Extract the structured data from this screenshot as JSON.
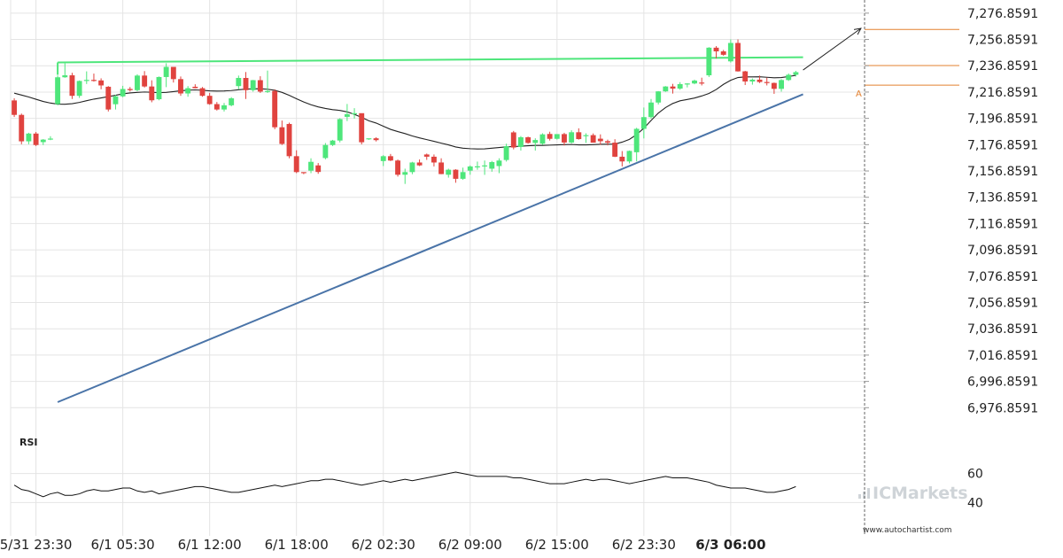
{
  "chart_data": [
    {
      "type": "candlestick",
      "ylim": [
        6956.8591,
        7286.8591
      ],
      "y_ticks": [
        "7,276.8591",
        "7,256.8591",
        "7,236.8591",
        "7,216.8591",
        "7,196.8591",
        "7,176.8591",
        "7,156.8591",
        "7,136.8591",
        "7,116.8591",
        "7,096.8591",
        "7,076.8591",
        "7,056.8591",
        "7,036.8591",
        "7,016.8591",
        "6,996.8591",
        "6,976.8591"
      ],
      "y_tick_values": [
        7276.8591,
        7256.8591,
        7236.8591,
        7216.8591,
        7196.8591,
        7176.8591,
        7156.8591,
        7136.8591,
        7116.8591,
        7096.8591,
        7076.8591,
        7056.8591,
        7036.8591,
        7016.8591,
        6996.8591,
        6976.8591
      ],
      "x_ticks": [
        "5/31 23:30",
        "6/1 05:30",
        "6/1 12:00",
        "6/1 18:00",
        "6/2 02:30",
        "6/2 09:00",
        "6/2 15:00",
        "6/2 23:30",
        "6/3 06:00"
      ],
      "x_tick_bar_index": [
        3,
        15,
        27,
        39,
        51,
        63,
        75,
        87,
        99
      ],
      "last_x_tick_bold": true,
      "candles_ohlc": [
        [
          7210.5,
          7212.1,
          7197.9,
          7199.5
        ],
        [
          7199.5,
          7200.5,
          7177.2,
          7179.4
        ],
        [
          7179.4,
          7185.9,
          7177.2,
          7185.3
        ],
        [
          7185.3,
          7186.5,
          7175.8,
          7176.6
        ],
        [
          7178.8,
          7181.1,
          7176.6,
          7180.7
        ],
        [
          7180.7,
          7183.3,
          7180.3,
          7181.5
        ],
        [
          7207.7,
          7229.4,
          7206.8,
          7228.1
        ],
        [
          7228.1,
          7238.8,
          7227.7,
          7229.6
        ],
        [
          7229.6,
          7231.5,
          7211.6,
          7214.0
        ],
        [
          7214.0,
          7225.7,
          7212.4,
          7225.3
        ],
        [
          7225.3,
          7232.6,
          7223.0,
          7226.1
        ],
        [
          7226.1,
          7230.9,
          7224.8,
          7225.7
        ],
        [
          7225.7,
          7227.3,
          7219.0,
          7221.9
        ],
        [
          7220.9,
          7221.4,
          7202.1,
          7203.6
        ],
        [
          7207.6,
          7214.7,
          7203.6,
          7213.6
        ],
        [
          7213.6,
          7221.6,
          7212.9,
          7219.2
        ],
        [
          7219.2,
          7220.7,
          7217.3,
          7218.3
        ],
        [
          7218.3,
          7230.4,
          7217.5,
          7229.4
        ],
        [
          7229.4,
          7232.8,
          7220.3,
          7221.1
        ],
        [
          7221.1,
          7225.8,
          7209.1,
          7210.6
        ],
        [
          7211.4,
          7228.7,
          7210.6,
          7228.3
        ],
        [
          7228.3,
          7238.8,
          7220.6,
          7236.0
        ],
        [
          7236.0,
          7235.5,
          7224.1,
          7226.7
        ],
        [
          7226.7,
          7228.7,
          7214.0,
          7215.8
        ],
        [
          7215.8,
          7221.4,
          7213.3,
          7219.8
        ],
        [
          7220.9,
          7222.8,
          7219.7,
          7219.8
        ],
        [
          7219.8,
          7220.7,
          7213.3,
          7214.0
        ],
        [
          7214.0,
          7216.2,
          7207.2,
          7207.7
        ],
        [
          7207.7,
          7209.3,
          7202.8,
          7203.6
        ],
        [
          7203.6,
          7208.6,
          7202.1,
          7206.8
        ],
        [
          7206.8,
          7213.0,
          7206.0,
          7212.1
        ],
        [
          7221.4,
          7229.4,
          7219.0,
          7227.6
        ],
        [
          7227.6,
          7232.1,
          7211.6,
          7218.3
        ],
        [
          7218.3,
          7226.1,
          7217.2,
          7225.9
        ],
        [
          7225.9,
          7228.9,
          7216.2,
          7217.2
        ],
        [
          7217.2,
          7233.2,
          7216.2,
          7217.7
        ],
        [
          7217.7,
          7218.9,
          7188.6,
          7190.1
        ],
        [
          7190.1,
          7195.2,
          7176.6,
          7177.4
        ],
        [
          7192.6,
          7193.6,
          7166.5,
          7168.1
        ],
        [
          7168.1,
          7172.6,
          7155.2,
          7156.0
        ],
        [
          7156.0,
          7155.5,
          7154.4,
          7155.2
        ],
        [
          7157.1,
          7166.5,
          7155.2,
          7163.8
        ],
        [
          7161.1,
          7162.9,
          7154.7,
          7156.1
        ],
        [
          7166.7,
          7178.1,
          7165.7,
          7176.6
        ],
        [
          7176.6,
          7180.5,
          7175.8,
          7180.0
        ],
        [
          7180.0,
          7197.0,
          7178.6,
          7196.3
        ],
        [
          7198.0,
          7207.8,
          7194.8,
          7200.0
        ],
        [
          7200.0,
          7204.6,
          7196.7,
          7200.8
        ],
        [
          7200.8,
          7199.2,
          7177.1,
          7178.7
        ],
        [
          7181.7,
          7181.5,
          7180.5,
          7181.7
        ],
        [
          7181.7,
          7182.5,
          7179.3,
          7180.3
        ],
        [
          7164.4,
          7168.9,
          7160.6,
          7168.1
        ],
        [
          7168.1,
          7169.8,
          7164.4,
          7164.8
        ],
        [
          7164.8,
          7165.6,
          7152.6,
          7154.0
        ],
        [
          7154.0,
          7158.6,
          7147.0,
          7156.0
        ],
        [
          7156.0,
          7163.8,
          7154.4,
          7163.3
        ],
        [
          7163.3,
          7165.6,
          7160.6,
          7161.1
        ],
        [
          7169.4,
          7170.1,
          7165.3,
          7167.7
        ],
        [
          7167.7,
          7169.4,
          7160.3,
          7163.3
        ],
        [
          7163.3,
          7166.5,
          7154.4,
          7154.5
        ],
        [
          7154.0,
          7158.6,
          7151.8,
          7157.8
        ],
        [
          7157.8,
          7158.2,
          7147.9,
          7150.9
        ],
        [
          7150.9,
          7159.4,
          7150.1,
          7156.0
        ],
        [
          7157.1,
          7161.1,
          7154.0,
          7160.3
        ],
        [
          7160.3,
          7164.0,
          7157.8,
          7160.4
        ],
        [
          7160.5,
          7164.8,
          7153.9,
          7161.1
        ],
        [
          7158.6,
          7164.5,
          7156.3,
          7163.6
        ],
        [
          7160.6,
          7166.5,
          7155.2,
          7164.8
        ],
        [
          7165.2,
          7177.6,
          7164.0,
          7175.7
        ],
        [
          7186.2,
          7187.3,
          7173.3,
          7174.7
        ],
        [
          7175.1,
          7183.4,
          7172.4,
          7182.5
        ],
        [
          7182.5,
          7183.0,
          7177.6,
          7178.2
        ],
        [
          7178.2,
          7181.7,
          7172.4,
          7180.4
        ],
        [
          7177.6,
          7185.5,
          7176.6,
          7184.7
        ],
        [
          7185.0,
          7186.7,
          7180.0,
          7181.3
        ],
        [
          7181.3,
          7184.7,
          7180.7,
          7184.9
        ],
        [
          7184.9,
          7185.9,
          7176.2,
          7178.5
        ],
        [
          7178.5,
          7187.8,
          7177.8,
          7186.3
        ],
        [
          7186.3,
          7189.3,
          7180.7,
          7181.1
        ],
        [
          7184.0,
          7185.5,
          7178.2,
          7184.1
        ],
        [
          7184.1,
          7185.4,
          7178.4,
          7178.4
        ],
        [
          7181.4,
          7184.7,
          7176.8,
          7179.5
        ],
        [
          7179.5,
          7180.7,
          7176.3,
          7178.4
        ],
        [
          7178.4,
          7181.0,
          7167.4,
          7167.7
        ],
        [
          7167.7,
          7172.0,
          7160.3,
          7164.1
        ],
        [
          7164.1,
          7172.4,
          7162.6,
          7172.1
        ],
        [
          7171.1,
          7189.7,
          7164.1,
          7188.9
        ],
        [
          7188.9,
          7205.1,
          7181.6,
          7197.8
        ],
        [
          7197.8,
          7211.6,
          7196.6,
          7208.9
        ],
        [
          7208.9,
          7217.6,
          7207.4,
          7217.4
        ],
        [
          7217.4,
          7221.4,
          7217.0,
          7221.1
        ],
        [
          7221.1,
          7223.1,
          7215.7,
          7219.5
        ],
        [
          7219.5,
          7224.4,
          7218.6,
          7222.9
        ],
        [
          7222.9,
          7223.6,
          7220.4,
          7223.4
        ],
        [
          7223.4,
          7226.3,
          7222.8,
          7225.6
        ],
        [
          7224.1,
          7227.8,
          7221.9,
          7223.8
        ],
        [
          7229.6,
          7251.0,
          7228.3,
          7250.6
        ],
        [
          7250.6,
          7251.8,
          7242.4,
          7247.8
        ],
        [
          7247.8,
          7248.9,
          7244.5,
          7245.2
        ],
        [
          7240.2,
          7256.9,
          7239.3,
          7254.2
        ],
        [
          7254.2,
          7256.9,
          7232.4,
          7232.6
        ],
        [
          7232.6,
          7233.0,
          7222.2,
          7224.9
        ],
        [
          7224.9,
          7227.2,
          7222.5,
          7226.3
        ],
        [
          7226.3,
          7229.4,
          7223.7,
          7224.5
        ],
        [
          7224.5,
          7227.8,
          7221.9,
          7223.8
        ],
        [
          7223.8,
          7224.1,
          7215.5,
          7219.3
        ],
        [
          7219.3,
          7226.7,
          7217.2,
          7226.0
        ],
        [
          7226.0,
          7231.0,
          7225.3,
          7230.0
        ],
        [
          7230.0,
          7233.0,
          7228.7,
          7232.0
        ]
      ],
      "moving_average": [
        7216.0,
        7214.6,
        7213.1,
        7211.4,
        7209.7,
        7208.5,
        7207.7,
        7207.6,
        7208.0,
        7209.0,
        7210.3,
        7211.5,
        7212.4,
        7213.4,
        7214.4,
        7215.5,
        7216.2,
        7216.6,
        7216.9,
        7216.7,
        7216.4,
        7216.6,
        7217.2,
        7217.9,
        7218.3,
        7218.5,
        7218.2,
        7217.8,
        7217.6,
        7217.7,
        7218.0,
        7218.6,
        7219.1,
        7219.3,
        7219.4,
        7219.0,
        7218.2,
        7216.6,
        7214.4,
        7211.8,
        7209.3,
        7207.2,
        7205.6,
        7204.4,
        7203.5,
        7202.9,
        7201.8,
        7199.9,
        7197.6,
        7195.0,
        7193.3,
        7190.9,
        7188.5,
        7186.8,
        7185.3,
        7183.5,
        7182.0,
        7180.7,
        7179.4,
        7178.0,
        7176.7,
        7175.1,
        7174.2,
        7173.8,
        7173.6,
        7173.7,
        7174.2,
        7174.7,
        7175.2,
        7175.4,
        7175.7,
        7176.0,
        7176.3,
        7176.3,
        7176.5,
        7176.7,
        7176.9,
        7177.0,
        7176.7,
        7176.7,
        7176.9,
        7177.1,
        7177.2,
        7177.3,
        7178.8,
        7180.9,
        7184.5,
        7189.4,
        7195.3,
        7200.9,
        7205.1,
        7208.2,
        7210.2,
        7211.2,
        7212.3,
        7213.9,
        7215.8,
        7218.8,
        7222.7,
        7225.8,
        7227.9,
        7228.4,
        7228.4,
        7228.5,
        7228.1,
        7227.7,
        7227.9,
        7228.7,
        7229.6
      ],
      "overlay_lines": [
        {
          "from": [
            6,
            7239.4
          ],
          "to": [
            109,
            7243.3
          ]
        },
        {
          "from": [
            6,
            6981.1
          ],
          "to": [
            109,
            7215.2
          ]
        },
        {
          "from": [
            109,
            7233.6
          ],
          "to": [
            117,
            7265.3
          ]
        }
      ],
      "horizontal_levels": [
        7264.5,
        7237.0,
        7222.1
      ],
      "level_marker": "A",
      "level_marker_value": 7216.2
    },
    {
      "type": "line",
      "title": "RSI",
      "y_ticks": [
        "60",
        "40"
      ],
      "y_tick_values": [
        60,
        40
      ],
      "ylim": [
        25,
        75
      ],
      "values": [
        52,
        49,
        48,
        46,
        44,
        46,
        47,
        45,
        45,
        46,
        48,
        49,
        48,
        48,
        49,
        50,
        50,
        48,
        47,
        48,
        46,
        47,
        48,
        49,
        50,
        51,
        51,
        50,
        49,
        48,
        47,
        47,
        48,
        49,
        50,
        51,
        52,
        51,
        52,
        53,
        54,
        55,
        55,
        56,
        56,
        55,
        54,
        53,
        52,
        53,
        54,
        55,
        54,
        55,
        56,
        55,
        56,
        57,
        58,
        59,
        60,
        61,
        60,
        59,
        58,
        58,
        58,
        58,
        58,
        57,
        57,
        56,
        55,
        54,
        53,
        53,
        53,
        54,
        55,
        56,
        55,
        56,
        56,
        55,
        54,
        53,
        54,
        55,
        56,
        57,
        58,
        57,
        57,
        57,
        56,
        55,
        54,
        52,
        51,
        50,
        50,
        50,
        49,
        48,
        47,
        47,
        48,
        49,
        51
      ]
    }
  ],
  "brand": {
    "logo_text": "ICMarkets",
    "url": "www.autochartist.com"
  },
  "colors": {
    "bull": "#4ee67b",
    "bear": "#e0433f",
    "resistance": "#4ee67b",
    "support": "#4a74a8",
    "levels": "#e3802f",
    "ma": "#222222",
    "grid": "#e4e4e4",
    "watermark": "#cfd4d8"
  }
}
